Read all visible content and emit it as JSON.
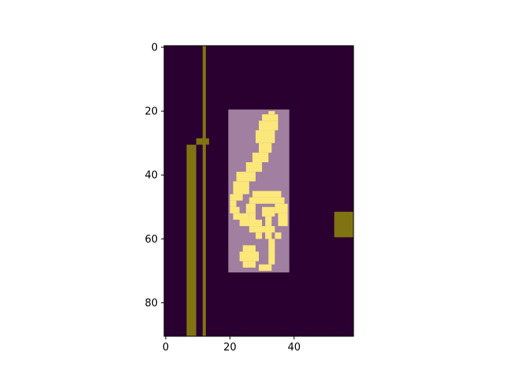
{
  "chart_data": {
    "type": "heatmap",
    "title": "",
    "xlabel": "",
    "ylabel": "",
    "xlim": [
      -0.5,
      58.5
    ],
    "ylim": [
      90.5,
      -0.5
    ],
    "x_ticks": [
      0,
      20,
      40
    ],
    "y_ticks": [
      0,
      20,
      40,
      60,
      80
    ],
    "grid": false,
    "colors": {
      "background": "#2a0030",
      "overlay_region": "#a07fa0",
      "symbol": "#fbe77a",
      "bars": "#807312"
    },
    "layers": [
      {
        "name": "background",
        "x": [
          0,
          58
        ],
        "y": [
          0,
          90
        ],
        "value": 0
      },
      {
        "name": "highlight-region",
        "x": [
          20,
          38
        ],
        "y": [
          20,
          70
        ],
        "value": 0.5
      },
      {
        "name": "treble-clef-symbol",
        "value": 1
      }
    ],
    "bars": [
      {
        "name": "left-wide-bar",
        "x": [
          6.5,
          9.5
        ],
        "y": [
          30.5,
          90.5
        ]
      },
      {
        "name": "thin-vertical-line",
        "x": [
          11.5,
          12.5
        ],
        "y": [
          -0.5,
          90.5
        ]
      },
      {
        "name": "small-hook",
        "x": [
          9.5,
          13.5
        ],
        "y": [
          28.5,
          30.5
        ]
      },
      {
        "name": "right-block",
        "x": [
          52.5,
          58.5
        ],
        "y": [
          51.5,
          59.5
        ]
      }
    ],
    "clef_rows": [
      {
        "y": [
          20,
          21
        ],
        "x": [
          32,
          34
        ]
      },
      {
        "y": [
          21,
          23
        ],
        "x": [
          30,
          35
        ]
      },
      {
        "y": [
          23,
          26
        ],
        "x": [
          29,
          35
        ]
      },
      {
        "y": [
          26,
          30
        ],
        "x": [
          28,
          34
        ]
      },
      {
        "y": [
          30,
          33
        ],
        "x": [
          29,
          33
        ]
      },
      {
        "y": [
          33,
          36
        ],
        "x": [
          27,
          32
        ]
      },
      {
        "y": [
          36,
          39
        ],
        "x": [
          25,
          30
        ]
      },
      {
        "y": [
          39,
          42
        ],
        "x": [
          22,
          28
        ]
      },
      {
        "y": [
          42,
          46
        ],
        "x": [
          21,
          26
        ]
      },
      {
        "y": [
          46,
          48
        ],
        "x": [
          20,
          24
        ]
      },
      {
        "y": [
          48,
          50
        ],
        "x": [
          20,
          22
        ]
      },
      {
        "y": [
          50,
          52
        ],
        "x": [
          20,
          23
        ]
      },
      {
        "y": [
          52,
          54
        ],
        "x": [
          21,
          26
        ]
      },
      {
        "y": [
          54,
          56
        ],
        "x": [
          23,
          30
        ]
      },
      {
        "y": [
          56,
          58
        ],
        "x": [
          26,
          34
        ]
      },
      {
        "y": [
          58,
          60
        ],
        "x": [
          31,
          33
        ]
      },
      {
        "y": [
          60,
          64
        ],
        "x": [
          32,
          34
        ]
      },
      {
        "y": [
          64,
          68
        ],
        "x": [
          32,
          34
        ]
      },
      {
        "y": [
          68,
          70
        ],
        "x": [
          29,
          33
        ]
      },
      {
        "y": [
          45,
          47
        ],
        "x": [
          27,
          36
        ]
      },
      {
        "y": [
          47,
          49
        ],
        "x": [
          26,
          37
        ]
      },
      {
        "y": [
          49,
          52
        ],
        "x": [
          25,
          28
        ]
      },
      {
        "y": [
          49,
          52
        ],
        "x": [
          34,
          38
        ]
      },
      {
        "y": [
          52,
          55
        ],
        "x": [
          26,
          28
        ]
      },
      {
        "y": [
          52,
          56
        ],
        "x": [
          35,
          38
        ]
      },
      {
        "y": [
          55,
          56
        ],
        "x": [
          27,
          29
        ]
      },
      {
        "y": [
          50,
          53
        ],
        "x": [
          30,
          34
        ]
      },
      {
        "y": [
          53,
          60
        ],
        "x": [
          31,
          33
        ]
      },
      {
        "y": [
          58,
          60
        ],
        "x": [
          28,
          30
        ]
      },
      {
        "y": [
          58,
          60
        ],
        "x": [
          34,
          36
        ]
      },
      {
        "y": [
          62,
          64
        ],
        "x": [
          24,
          28
        ]
      },
      {
        "y": [
          64,
          67
        ],
        "x": [
          23,
          29
        ]
      },
      {
        "y": [
          67,
          69
        ],
        "x": [
          24,
          28
        ]
      }
    ]
  }
}
